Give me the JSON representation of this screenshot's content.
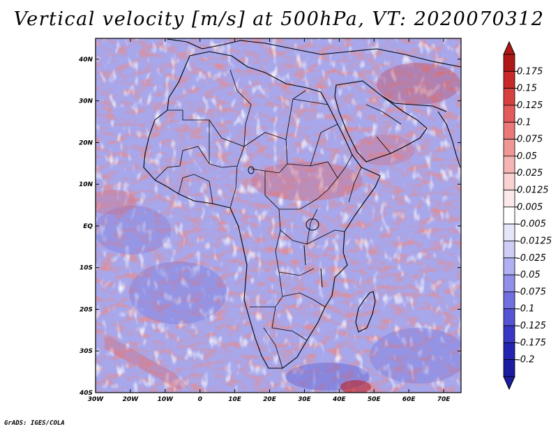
{
  "title": "Vertical velocity [m/s] at 500hPa, VT: 2020070312",
  "credit": "GrADS: IGES/COLA",
  "map": {
    "lon_range": [
      -30,
      75
    ],
    "lat_range": [
      -40,
      45
    ],
    "lat_ticks": [
      "40N",
      "30N",
      "20N",
      "10N",
      "EQ",
      "10S",
      "20S",
      "30S",
      "40S"
    ],
    "lon_ticks": [
      "30W",
      "20W",
      "10W",
      "0",
      "10E",
      "20E",
      "30E",
      "40E",
      "50E",
      "60E",
      "70E"
    ]
  },
  "colorbar": {
    "labels": [
      "0.175",
      "0.15",
      "0.125",
      "0.1",
      "0.075",
      "0.05",
      "0.025",
      "0.0125",
      "0.005",
      "-0.005",
      "-0.0125",
      "-0.025",
      "-0.05",
      "-0.075",
      "-0.1",
      "-0.125",
      "-0.175",
      "-0.2"
    ],
    "colors": [
      "#b01818",
      "#c82828",
      "#d84040",
      "#e25a5a",
      "#ea7878",
      "#f19696",
      "#f6b5b5",
      "#fad2d2",
      "#fde9e9",
      "#ffffff",
      "#e6e6fb",
      "#cdcdf7",
      "#b0b0f2",
      "#9090ea",
      "#7070e0",
      "#5454d4",
      "#3838c4",
      "#2424b2",
      "#1c1ca0"
    ]
  }
}
